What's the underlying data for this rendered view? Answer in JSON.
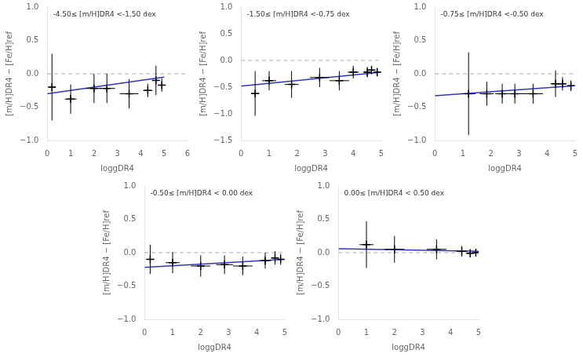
{
  "chart_data": [
    {
      "type": "scatter",
      "annotation": "-4.50≤ [m/H]DR4 <-1.50 dex",
      "xlabel": "loggDR4",
      "ylabel": "[m/H]DR4 − [Fe/H]ref",
      "xlim": [
        0,
        6
      ],
      "xticks": [
        0,
        1,
        2,
        3,
        4,
        5,
        6
      ],
      "ylim": [
        -1.0,
        1.0
      ],
      "yticks": [
        {
          "value": -1.0,
          "label": "−1.0"
        },
        {
          "value": -0.5,
          "label": "−0.5"
        },
        {
          "value": 0.0,
          "label": "0.0"
        },
        {
          "value": 0.5,
          "label": "0.5"
        },
        {
          "value": 1.0,
          "label": "1.0"
        }
      ],
      "grid": false,
      "reference_lines": [
        {
          "y": 0,
          "color": "#aaaaaa",
          "line_style": "dashed"
        }
      ],
      "series": [
        {
          "type": "line",
          "color": "#3333bb",
          "line_style": "solid",
          "x": [
            0.0,
            5.0
          ],
          "values": [
            -0.3,
            -0.05
          ]
        },
        {
          "type": "scatter",
          "marker": "plus",
          "color": "black",
          "x": [
            0.2,
            1.0,
            2.0,
            2.55,
            3.5,
            4.3,
            4.65,
            4.9
          ],
          "values": [
            -0.2,
            -0.38,
            -0.22,
            -0.22,
            -0.3,
            -0.25,
            -0.1,
            -0.17
          ],
          "xerr": [
            0.15,
            0.25,
            0.35,
            0.35,
            0.4,
            0.2,
            0.15,
            0.12
          ],
          "yerr": [
            0.5,
            0.22,
            0.22,
            0.22,
            0.22,
            0.1,
            0.22,
            0.1
          ]
        }
      ]
    },
    {
      "type": "scatter",
      "annotation": "-1.50≤ [m/H]DR4 <-0.75 dex",
      "xlabel": "loggDR4",
      "ylabel": "[m/H]DR4 − [Fe/H]ref",
      "xlim": [
        0,
        5
      ],
      "xticks": [
        0,
        1,
        2,
        3,
        4,
        5
      ],
      "ylim": [
        -1.5,
        1.0
      ],
      "yticks": [
        {
          "value": -1.5,
          "label": "−1.5"
        },
        {
          "value": -1.0,
          "label": "−1.0"
        },
        {
          "value": -0.5,
          "label": "−0.5"
        },
        {
          "value": 0.0,
          "label": "0.0"
        },
        {
          "value": 0.5,
          "label": "0.5"
        },
        {
          "value": 1.0,
          "label": "1.0"
        }
      ],
      "grid": false,
      "reference_lines": [
        {
          "y": 0,
          "color": "#aaaaaa",
          "line_style": "dashed"
        }
      ],
      "series": [
        {
          "type": "line",
          "color": "#3333bb",
          "line_style": "solid",
          "x": [
            0.0,
            5.0
          ],
          "values": [
            -0.48,
            -0.22
          ]
        },
        {
          "type": "scatter",
          "marker": "plus",
          "color": "black",
          "x": [
            0.5,
            1.0,
            1.8,
            2.8,
            3.5,
            4.0,
            4.5,
            4.65,
            4.85
          ],
          "values": [
            -0.62,
            -0.38,
            -0.45,
            -0.32,
            -0.38,
            -0.22,
            -0.22,
            -0.18,
            -0.22
          ],
          "xerr": [
            0.15,
            0.25,
            0.25,
            0.35,
            0.35,
            0.2,
            0.12,
            0.1,
            0.1
          ],
          "yerr": [
            0.42,
            0.18,
            0.25,
            0.18,
            0.18,
            0.12,
            0.1,
            0.08,
            0.08
          ]
        }
      ]
    },
    {
      "type": "scatter",
      "annotation": "-0.75≤ [m/H]DR4 <-0.50 dex",
      "xlabel": "loggDR4",
      "ylabel": "[m/H]DR4 − [Fe/H]ref",
      "xlim": [
        0,
        5
      ],
      "xticks": [
        0,
        1,
        2,
        3,
        4,
        5
      ],
      "ylim": [
        -1.0,
        1.0
      ],
      "yticks": [
        {
          "value": -1.0,
          "label": "−1.0"
        },
        {
          "value": -0.5,
          "label": "−0.5"
        },
        {
          "value": 0.0,
          "label": "0.0"
        },
        {
          "value": 0.5,
          "label": "0.5"
        },
        {
          "value": 1.0,
          "label": "1.0"
        }
      ],
      "grid": false,
      "reference_lines": [
        {
          "y": 0,
          "color": "#aaaaaa",
          "line_style": "dashed"
        }
      ],
      "series": [
        {
          "type": "line",
          "color": "#3333bb",
          "line_style": "solid",
          "x": [
            0.0,
            5.0
          ],
          "values": [
            -0.33,
            -0.18
          ]
        },
        {
          "type": "scatter",
          "marker": "plus",
          "color": "black",
          "x": [
            1.2,
            1.85,
            2.4,
            2.85,
            3.5,
            4.3,
            4.55,
            4.85
          ],
          "values": [
            -0.3,
            -0.3,
            -0.3,
            -0.3,
            -0.3,
            -0.15,
            -0.15,
            -0.18
          ],
          "xerr": [
            0.25,
            0.25,
            0.25,
            0.3,
            0.35,
            0.18,
            0.12,
            0.1
          ],
          "yerr": [
            0.62,
            0.18,
            0.15,
            0.15,
            0.15,
            0.2,
            0.1,
            0.08
          ]
        }
      ]
    },
    {
      "type": "scatter",
      "annotation": "-0.50≤ [m/H]DR4 < 0.00 dex",
      "xlabel": "loggDR4",
      "ylabel": "[m/H]DR4 − [Fe/H]ref",
      "xlim": [
        0,
        5
      ],
      "xticks": [
        0,
        1,
        2,
        3,
        4,
        5
      ],
      "ylim": [
        -1.0,
        1.0
      ],
      "yticks": [
        {
          "value": -1.0,
          "label": "−1.0"
        },
        {
          "value": -0.5,
          "label": "−0.5"
        },
        {
          "value": 0.0,
          "label": "0.0"
        },
        {
          "value": 0.5,
          "label": "0.5"
        },
        {
          "value": 1.0,
          "label": "1.0"
        }
      ],
      "grid": false,
      "reference_lines": [
        {
          "y": 0,
          "color": "#aaaaaa",
          "line_style": "dashed"
        }
      ],
      "series": [
        {
          "type": "line",
          "color": "#3333bb",
          "line_style": "solid",
          "x": [
            0.0,
            5.0
          ],
          "values": [
            -0.22,
            -0.1
          ]
        },
        {
          "type": "scatter",
          "marker": "plus",
          "color": "black",
          "x": [
            0.2,
            1.0,
            2.0,
            2.85,
            3.5,
            4.3,
            4.65,
            4.85
          ],
          "values": [
            -0.1,
            -0.15,
            -0.2,
            -0.18,
            -0.2,
            -0.12,
            -0.08,
            -0.1
          ],
          "xerr": [
            0.15,
            0.25,
            0.35,
            0.3,
            0.35,
            0.2,
            0.12,
            0.1
          ],
          "yerr": [
            0.22,
            0.16,
            0.16,
            0.14,
            0.14,
            0.12,
            0.1,
            0.08
          ]
        }
      ]
    },
    {
      "type": "scatter",
      "annotation": "0.00≤ [m/H]DR4 < 0.50 dex",
      "xlabel": "loggDR4",
      "ylabel": "[m/H]DR4 − [Fe/H]ref",
      "xlim": [
        0,
        5
      ],
      "xticks": [
        0,
        1,
        2,
        3,
        4,
        5
      ],
      "ylim": [
        -1.0,
        1.0
      ],
      "yticks": [
        {
          "value": -1.0,
          "label": "−1.0"
        },
        {
          "value": -0.5,
          "label": "−0.5"
        },
        {
          "value": 0.0,
          "label": "0.0"
        },
        {
          "value": 0.5,
          "label": "0.5"
        },
        {
          "value": 1.0,
          "label": "1.0"
        }
      ],
      "grid": false,
      "reference_lines": [
        {
          "y": 0,
          "color": "#aaaaaa",
          "line_style": "dashed"
        }
      ],
      "series": [
        {
          "type": "line",
          "color": "#3333bb",
          "line_style": "solid",
          "x": [
            0.0,
            5.0
          ],
          "values": [
            0.06,
            0.02
          ]
        },
        {
          "type": "scatter",
          "marker": "plus",
          "color": "black",
          "x": [
            1.0,
            2.0,
            3.5,
            4.4,
            4.7,
            4.9
          ],
          "values": [
            0.12,
            0.05,
            0.05,
            0.02,
            -0.01,
            0.0
          ],
          "xerr": [
            0.25,
            0.35,
            0.35,
            0.2,
            0.12,
            0.1
          ],
          "yerr": [
            0.35,
            0.2,
            0.15,
            0.08,
            0.06,
            0.04
          ]
        }
      ]
    }
  ]
}
